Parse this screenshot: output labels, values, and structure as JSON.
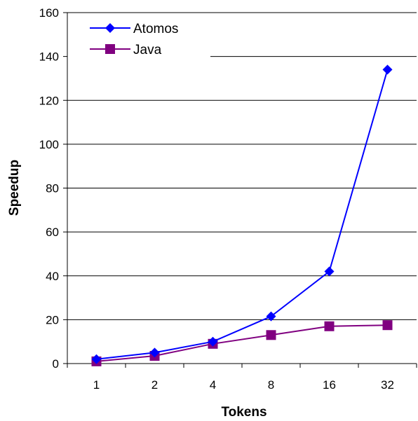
{
  "chart_data": {
    "type": "line",
    "title": "",
    "xlabel": "Tokens",
    "ylabel": "Speedup",
    "categories": [
      "1",
      "2",
      "4",
      "8",
      "16",
      "32"
    ],
    "ylim": [
      0,
      160
    ],
    "yticks": [
      "0",
      "20",
      "40",
      "60",
      "80",
      "100",
      "120",
      "140",
      "160"
    ],
    "grid": true,
    "legend_position": "top-left",
    "series": [
      {
        "name": "Atomos",
        "color": "#0000ff",
        "marker": "diamond",
        "values": [
          2,
          5,
          10,
          21.5,
          42,
          134
        ]
      },
      {
        "name": "Java",
        "color": "#800080",
        "marker": "square",
        "values": [
          1,
          3.5,
          9,
          13,
          17,
          17.5
        ]
      }
    ]
  }
}
